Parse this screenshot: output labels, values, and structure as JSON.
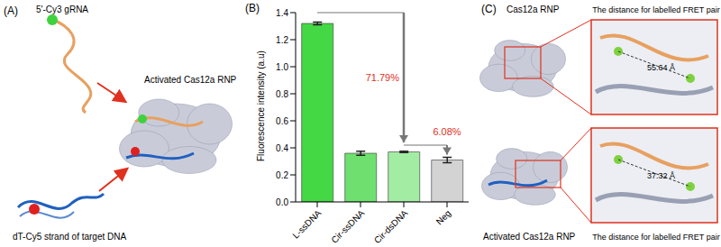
{
  "panel_a": {
    "label": "(A)",
    "grna": "5'-Cy3 gRNA",
    "rnp": "Activated Cas12a RNP",
    "target": "dT-Cy5 strand of target DNA"
  },
  "panel_b": {
    "label": "(B)"
  },
  "chart_data": {
    "type": "bar",
    "y_label": "Fluorescence intensity (a.u)",
    "categories": [
      "L-ssDNA",
      "Cir-ssDNA",
      "Cir-dsDNA",
      "Neg"
    ],
    "values": [
      1.32,
      0.36,
      0.37,
      0.31
    ],
    "errors": [
      0.01,
      0.015,
      0.005,
      0.02
    ],
    "colors": [
      "#45d845",
      "#6fe06f",
      "#a3eca3",
      "#d3d3d3"
    ],
    "ylim": [
      0,
      1.4
    ],
    "yticks": [
      {
        "value": 0,
        "label": "0.0"
      },
      {
        "value": 0.2,
        "label": "0.2"
      },
      {
        "value": 0.4,
        "label": "0.4"
      },
      {
        "value": 0.6,
        "label": "0.6"
      },
      {
        "value": 0.8,
        "label": "0.8"
      },
      {
        "value": 1.0,
        "label": "1.0"
      },
      {
        "value": 1.2,
        "label": "1.2"
      },
      {
        "value": 1.4,
        "label": "1.4"
      }
    ],
    "annotations": [
      "71.79%",
      "6.08%"
    ]
  },
  "panel_c": {
    "label": "(C)",
    "top": {
      "title": "Cas12a RNP",
      "inset_title": "The distance for labelled FRET pair",
      "distance": "55.64 Å"
    },
    "bottom": {
      "title": "Activated Cas12a RNP",
      "inset_title": "The distance for labelled FRET pair",
      "distance": "37.32 Å"
    }
  }
}
